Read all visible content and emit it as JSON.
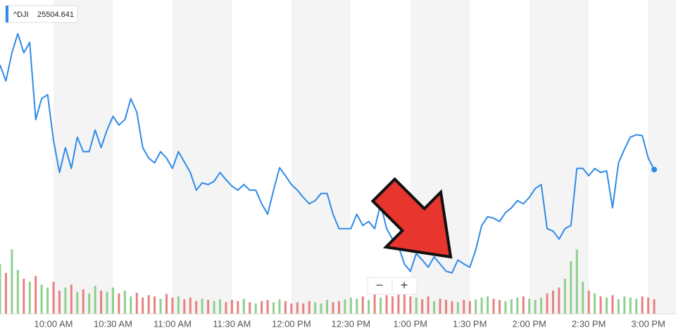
{
  "chart_data": {
    "type": "line",
    "series": [
      {
        "name": "^DJI",
        "color": "#2f8be6",
        "values": [
          25635,
          25615,
          25650,
          25674,
          25650,
          25663,
          25567,
          25593,
          25598,
          25541,
          25501,
          25532,
          25506,
          25545,
          25527,
          25527,
          25554,
          25532,
          25554,
          25571,
          25560,
          25567,
          25593,
          25576,
          25532,
          25519,
          25513,
          25527,
          25519,
          25506,
          25527,
          25514,
          25501,
          25479,
          25488,
          25486,
          25490,
          25501,
          25492,
          25484,
          25479,
          25486,
          25479,
          25479,
          25462,
          25449,
          25479,
          25507,
          25497,
          25486,
          25479,
          25470,
          25462,
          25466,
          25475,
          25475,
          25449,
          25431,
          25431,
          25431,
          25449,
          25435,
          25440,
          25431,
          25462,
          25431,
          25418,
          25409,
          25387,
          25378,
          25400,
          25392,
          25383,
          25396,
          25387,
          25378,
          25376,
          25392,
          25387,
          25383,
          25405,
          25435,
          25446,
          25444,
          25440,
          25451,
          25457,
          25466,
          25462,
          25470,
          25481,
          25486,
          25431,
          25428,
          25418,
          25431,
          25435,
          25506,
          25506,
          25497,
          25506,
          25501,
          25503,
          25457,
          25513,
          25530,
          25545,
          25548,
          25547,
          25519,
          25504.641
        ]
      }
    ],
    "x": [
      573,
      576,
      579,
      582,
      585,
      588,
      591,
      594,
      597,
      600,
      603,
      606,
      609,
      612,
      615,
      618,
      621,
      624,
      627,
      630,
      633,
      636,
      639,
      642,
      645,
      648,
      651,
      654,
      657,
      660,
      663,
      666,
      669,
      672,
      675,
      678,
      681,
      684,
      687,
      690,
      693,
      696,
      699,
      702,
      705,
      708,
      711,
      714,
      717,
      720,
      723,
      726,
      729,
      732,
      735,
      738,
      741,
      744,
      747,
      750,
      753,
      756,
      759,
      762,
      765,
      768,
      771,
      774,
      777,
      780,
      783,
      786,
      789,
      792,
      795,
      798,
      801,
      804,
      807,
      810,
      813,
      816,
      819,
      822,
      825,
      828,
      831,
      834,
      837,
      840,
      843,
      846,
      849,
      852,
      855,
      858,
      861,
      864,
      867,
      870,
      873,
      876,
      879,
      882,
      885,
      888,
      891,
      894,
      897,
      900,
      903
    ],
    "xlim": [
      573,
      914
    ],
    "xticks": [
      {
        "value": 600,
        "label": "10:00 AM"
      },
      {
        "value": 630,
        "label": "10:30 AM"
      },
      {
        "value": 660,
        "label": "11:00 AM"
      },
      {
        "value": 690,
        "label": "11:30 AM"
      },
      {
        "value": 720,
        "label": "12:00 PM"
      },
      {
        "value": 750,
        "label": "12:30 PM"
      },
      {
        "value": 780,
        "label": "1:00 PM"
      },
      {
        "value": 810,
        "label": "1:30 PM"
      },
      {
        "value": 840,
        "label": "2:00 PM"
      },
      {
        "value": 870,
        "label": "2:30 PM"
      },
      {
        "value": 900,
        "label": "3:00 PM"
      }
    ],
    "ylim": [
      25330,
      25715
    ],
    "volume": {
      "up_color": "#8fcf8f",
      "down_color": "#e88080",
      "ylim": [
        0,
        120
      ],
      "values": [
        85,
        70,
        110,
        75,
        60,
        55,
        65,
        50,
        45,
        55,
        40,
        45,
        50,
        38,
        42,
        35,
        48,
        40,
        38,
        45,
        35,
        40,
        30,
        36,
        28,
        32,
        30,
        26,
        34,
        28,
        30,
        25,
        28,
        22,
        26,
        24,
        22,
        25,
        20,
        24,
        22,
        26,
        20,
        18,
        22,
        24,
        20,
        25,
        22,
        18,
        20,
        18,
        22,
        20,
        18,
        24,
        20,
        22,
        25,
        28,
        26,
        30,
        24,
        35,
        28,
        32,
        30,
        40,
        35,
        30,
        28,
        25,
        30,
        22,
        26,
        24,
        22,
        20,
        24,
        22,
        25,
        28,
        30,
        26,
        24,
        22,
        25,
        28,
        30,
        26,
        24,
        28,
        35,
        40,
        45,
        60,
        90,
        110,
        55,
        40,
        35,
        30,
        28,
        32,
        25,
        30,
        28,
        26,
        30,
        28,
        25
      ]
    },
    "zoom_out": "−",
    "zoom_in": "+"
  }
}
